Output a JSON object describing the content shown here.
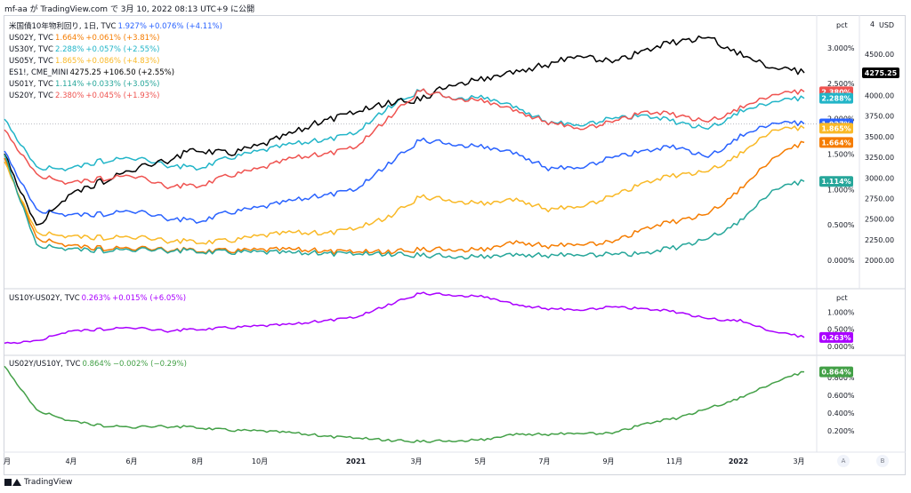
{
  "caption": "mf-aa が TradingView.com で 3月 10, 2022 08:13 UTC+9 に公開",
  "footer": {
    "brand": "TradingView"
  },
  "axis": {
    "unit_top": "pct",
    "unit_usd": "USD",
    "unit_mid": "pct",
    "usd_top_partial": "4",
    "pct_top": [
      "3.000%",
      "2.500%",
      "2.000%",
      "1.500%",
      "1.000%",
      "0.500%",
      "0.000%"
    ],
    "usd_top": [
      "4500.00",
      "4250.00",
      "4000.00",
      "3750.00",
      "3500.00",
      "3250.00",
      "3000.00",
      "2750.00",
      "2500.00",
      "2250.00",
      "2000.00"
    ],
    "pct_mid": [
      "1.000%",
      "0.500%",
      "0.000%"
    ],
    "pct_bot": [
      "0.800%",
      "0.600%",
      "0.400%",
      "0.200%"
    ],
    "time": [
      "月",
      "4月",
      "6月",
      "8月",
      "10月",
      "2021",
      "3月",
      "5月",
      "7月",
      "9月",
      "11月",
      "2022",
      "3月"
    ],
    "buttons": [
      "A",
      "B"
    ]
  },
  "legend_top": [
    {
      "name": "米国債10年物利回り",
      "suffix": ", 1日, TVC",
      "value": "1.927%",
      "change": "+0.076% (+4.11%)",
      "color": "#2962ff"
    },
    {
      "name": "US02Y",
      "suffix": ", TVC",
      "value": "1.664%",
      "change": "+0.061% (+3.81%)",
      "color": "#f57c00"
    },
    {
      "name": "US30Y",
      "suffix": ", TVC",
      "value": "2.288%",
      "change": "+0.057% (+2.55%)",
      "color": "#22b5c8"
    },
    {
      "name": "US05Y",
      "suffix": ", TVC",
      "value": "1.865%",
      "change": "+0.086% (+4.83%)",
      "color": "#f9b927"
    },
    {
      "name": "ES1!",
      "suffix": ", CME_MINI",
      "value": "4275.25",
      "change": "+106.50 (+2.55%)",
      "color": "#000000"
    },
    {
      "name": "US01Y",
      "suffix": ", TVC",
      "value": "1.114%",
      "change": "+0.033% (+3.05%)",
      "color": "#26a69a"
    },
    {
      "name": "US20Y",
      "suffix": ", TVC",
      "value": "2.380%",
      "change": "+0.045% (+1.93%)",
      "color": "#ef5350"
    }
  ],
  "legend_mid": {
    "name": "US10Y-US02Y",
    "suffix": ", TVC",
    "value": "0.263%",
    "change": "+0.015% (+6.05%)",
    "color": "#aa00ff"
  },
  "legend_bot": {
    "name": "US02Y/US10Y",
    "suffix": ", TVC",
    "value": "0.864%",
    "change": "−0.002% (−0.29%)",
    "color": "#43a047"
  },
  "price_tags": [
    {
      "label": "4275.25",
      "color": "#000000",
      "pane": "top",
      "scale": "usd",
      "value": 4275.25
    },
    {
      "label": "2.380%",
      "color": "#ef5350",
      "pane": "top",
      "scale": "pct",
      "value": 2.38
    },
    {
      "label": "2.288%",
      "color": "#22b5c8",
      "pane": "top",
      "scale": "pct",
      "value": 2.288
    },
    {
      "label": "1.927%",
      "color": "#2962ff",
      "pane": "top",
      "scale": "pct",
      "value": 1.927
    },
    {
      "label": "1.865%",
      "color": "#f9b927",
      "pane": "top",
      "scale": "pct",
      "value": 1.865
    },
    {
      "label": "1.664%",
      "color": "#f57c00",
      "pane": "top",
      "scale": "pct",
      "value": 1.664
    },
    {
      "label": "1.114%",
      "color": "#26a69a",
      "pane": "top",
      "scale": "pct",
      "value": 1.114
    },
    {
      "label": "0.263%",
      "color": "#aa00ff",
      "pane": "mid",
      "scale": "pct",
      "value": 0.263
    },
    {
      "label": "0.864%",
      "color": "#43a047",
      "pane": "bot",
      "scale": "pct",
      "value": 0.864
    }
  ],
  "chart_data": {
    "type": "line",
    "x": [
      "2020-02",
      "2020-03",
      "2020-04",
      "2020-05",
      "2020-06",
      "2020-07",
      "2020-08",
      "2020-09",
      "2020-10",
      "2020-11",
      "2020-12",
      "2021-01",
      "2021-02",
      "2021-03",
      "2021-04",
      "2021-05",
      "2021-06",
      "2021-07",
      "2021-08",
      "2021-09",
      "2021-10",
      "2021-11",
      "2021-12",
      "2022-01",
      "2022-02",
      "2022-03"
    ],
    "panes": [
      {
        "ylim_pct": [
          0,
          3.2
        ],
        "ylim_usd": [
          2000,
          4750
        ],
        "series": [
          {
            "name": "米国債10年物利回り",
            "scale": "pct",
            "color": "#2962ff",
            "values": [
              1.55,
              0.7,
              0.65,
              0.65,
              0.7,
              0.6,
              0.55,
              0.68,
              0.75,
              0.85,
              0.92,
              1.0,
              1.35,
              1.7,
              1.65,
              1.6,
              1.5,
              1.3,
              1.3,
              1.45,
              1.55,
              1.6,
              1.45,
              1.75,
              1.95,
              1.927
            ]
          },
          {
            "name": "US02Y",
            "scale": "pct",
            "color": "#f57c00",
            "values": [
              1.45,
              0.3,
              0.22,
              0.17,
              0.17,
              0.15,
              0.14,
              0.14,
              0.15,
              0.16,
              0.13,
              0.12,
              0.11,
              0.15,
              0.16,
              0.15,
              0.25,
              0.2,
              0.22,
              0.25,
              0.45,
              0.55,
              0.65,
              1.0,
              1.45,
              1.664
            ]
          },
          {
            "name": "US30Y",
            "scale": "pct",
            "color": "#22b5c8",
            "values": [
              2.0,
              1.3,
              1.3,
              1.4,
              1.45,
              1.35,
              1.3,
              1.45,
              1.55,
              1.65,
              1.7,
              1.8,
              2.15,
              2.4,
              2.3,
              2.3,
              2.15,
              1.95,
              1.9,
              2.0,
              2.05,
              1.95,
              1.85,
              2.1,
              2.25,
              2.288
            ]
          },
          {
            "name": "US05Y",
            "scale": "pct",
            "color": "#f9b927",
            "values": [
              1.4,
              0.38,
              0.35,
              0.32,
              0.33,
              0.28,
              0.26,
              0.28,
              0.35,
              0.4,
              0.38,
              0.45,
              0.6,
              0.9,
              0.85,
              0.8,
              0.85,
              0.72,
              0.75,
              0.9,
              1.1,
              1.2,
              1.25,
              1.5,
              1.85,
              1.865
            ]
          },
          {
            "name": "ES1!",
            "scale": "usd",
            "color": "#000000",
            "values": [
              3300,
              2400,
              2800,
              2950,
              3100,
              3200,
              3350,
              3300,
              3400,
              3550,
              3700,
              3800,
              3900,
              3950,
              4150,
              4200,
              4280,
              4380,
              4480,
              4400,
              4550,
              4650,
              4700,
              4500,
              4350,
              4275.25
            ]
          },
          {
            "name": "US01Y",
            "scale": "pct",
            "color": "#26a69a",
            "values": [
              1.5,
              0.2,
              0.17,
              0.14,
              0.15,
              0.14,
              0.13,
              0.12,
              0.12,
              0.11,
              0.1,
              0.09,
              0.08,
              0.07,
              0.06,
              0.05,
              0.07,
              0.07,
              0.07,
              0.08,
              0.1,
              0.18,
              0.3,
              0.55,
              1.0,
              1.114
            ]
          },
          {
            "name": "US20Y",
            "scale": "pct",
            "color": "#ef5350",
            "values": [
              1.85,
              1.2,
              1.1,
              1.15,
              1.2,
              1.05,
              1.05,
              1.2,
              1.3,
              1.45,
              1.5,
              1.6,
              2.0,
              2.4,
              2.3,
              2.25,
              2.1,
              1.95,
              1.85,
              1.95,
              2.1,
              2.05,
              1.95,
              2.15,
              2.35,
              2.38
            ]
          }
        ]
      },
      {
        "ylim": [
          0,
          1.5
        ],
        "series": [
          {
            "name": "US10Y-US02Y",
            "color": "#aa00ff",
            "values": [
              0.1,
              0.15,
              0.45,
              0.5,
              0.55,
              0.45,
              0.5,
              0.55,
              0.6,
              0.65,
              0.75,
              0.85,
              1.2,
              1.55,
              1.5,
              1.45,
              1.2,
              1.1,
              1.05,
              1.15,
              1.1,
              1.0,
              0.8,
              0.75,
              0.45,
              0.263
            ]
          }
        ]
      },
      {
        "ylim": [
          0.1,
          0.95
        ],
        "series": [
          {
            "name": "US02Y/US10Y",
            "color": "#43a047",
            "values": [
              0.93,
              0.43,
              0.32,
              0.26,
              0.24,
              0.25,
              0.24,
              0.21,
              0.2,
              0.18,
              0.14,
              0.12,
              0.09,
              0.08,
              0.09,
              0.1,
              0.16,
              0.16,
              0.17,
              0.17,
              0.28,
              0.34,
              0.45,
              0.57,
              0.74,
              0.864
            ]
          }
        ]
      }
    ]
  }
}
